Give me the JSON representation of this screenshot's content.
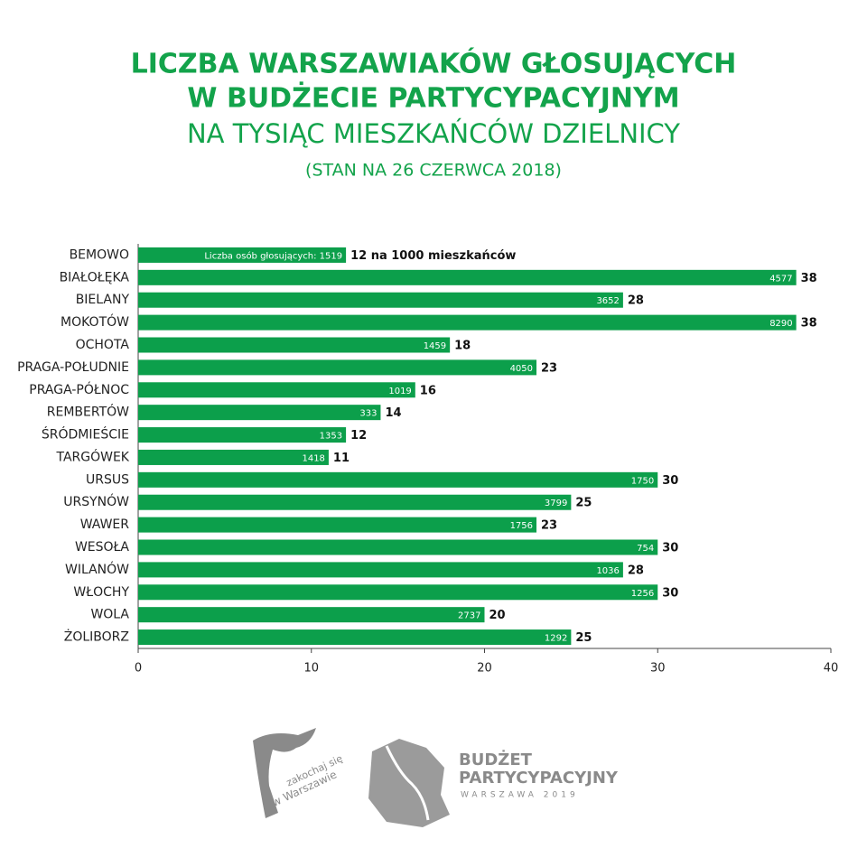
{
  "chart_data": {
    "type": "bar",
    "orientation": "horizontal",
    "title": [
      "LICZBA WARSZAWIAKÓW GŁOSUJĄCYCH",
      "W BUDŻECIE PARTYCYPACYJNYM"
    ],
    "subtitle": "NA TYSIĄC MIESZKAŃCÓW DZIELNICY",
    "note": "(STAN NA 26 CZERWCA 2018)",
    "categories": [
      "BEMOWO",
      "BIAŁOŁĘKA",
      "BIELANY",
      "MOKOTÓW",
      "OCHOTA",
      "PRAGA-POŁUDNIE",
      "PRAGA-PÓŁNOC",
      "REMBERTÓW",
      "ŚRÓDMIEŚCIE",
      "TARGÓWEK",
      "URSUS",
      "URSYNÓW",
      "WAWER",
      "WESOŁA",
      "WILANÓW",
      "WŁOCHY",
      "WOLA",
      "ŻOLIBORZ"
    ],
    "values": [
      12,
      38,
      28,
      38,
      18,
      23,
      16,
      14,
      12,
      11,
      30,
      25,
      23,
      30,
      28,
      30,
      20,
      25
    ],
    "value_labels": [
      "12 na 1000 mieszkańców",
      "38",
      "28",
      "38",
      "18",
      "23",
      "16",
      "14",
      "12",
      "11",
      "30",
      "25",
      "23",
      "30",
      "28",
      "30",
      "20",
      "25"
    ],
    "voters": [
      {
        "value": 1519,
        "label": "Liczba osób głosujących: 1519"
      },
      4577,
      3652,
      8290,
      1459,
      4050,
      1019,
      333,
      1353,
      1418,
      1750,
      3799,
      1756,
      754,
      1036,
      1256,
      2737,
      1292
    ],
    "color": "#0c9f4b",
    "xlim": [
      0,
      40
    ],
    "xticks": [
      0,
      10,
      20,
      30,
      40
    ],
    "grid": false
  },
  "footer": {
    "logo_left_line1": "zakochaj się",
    "logo_left_line2": "w Warszawie",
    "logo_right_line1": "BUDŻET",
    "logo_right_line2": "PARTYCYPACYJNY",
    "logo_right_line3": "WARSZAWA 2019"
  }
}
